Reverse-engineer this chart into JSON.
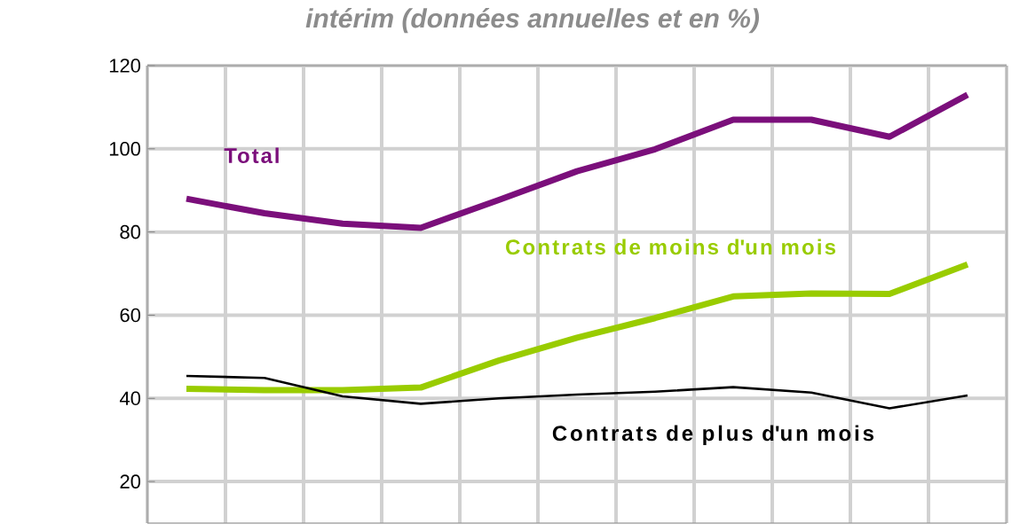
{
  "chart_data": {
    "type": "line",
    "title": "intérim (données annuelles et en %)",
    "categories": [
      null,
      null,
      null,
      null,
      null,
      null,
      null,
      null,
      null,
      null,
      null
    ],
    "series": [
      {
        "name": "Total",
        "color": "#7b0f7b",
        "values": [
          88,
          84.5,
          82,
          81,
          87.7,
          94.6,
          99.9,
          107,
          107,
          102.9,
          113
        ]
      },
      {
        "name": "Contrats de moins d'un mois",
        "color": "#99cc00",
        "values": [
          42.3,
          42,
          42,
          42.6,
          49.1,
          54.6,
          59.3,
          64.5,
          65.2,
          65.1,
          72.2
        ]
      },
      {
        "name": "Contrats de plus d'un mois",
        "color": "#000000",
        "values": [
          45.4,
          44.9,
          40.5,
          38.7,
          40,
          40.9,
          41.6,
          42.7,
          41.4,
          37.6,
          40.7
        ]
      }
    ],
    "ylim": [
      10,
      120
    ],
    "yticks": [
      20,
      40,
      60,
      80,
      100,
      120
    ],
    "grid": true,
    "tick_labels": "y",
    "marker": "none",
    "line_style": "solid"
  }
}
